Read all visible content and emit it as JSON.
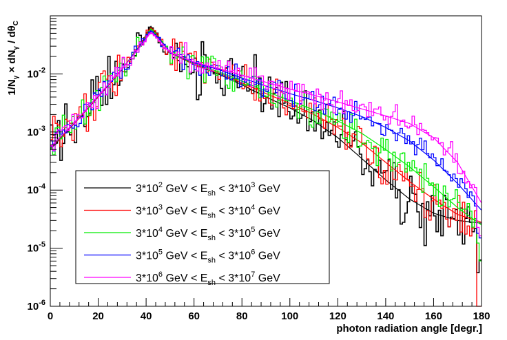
{
  "chart_data": {
    "type": "line",
    "title": "",
    "xlabel": "photon radiation angle [degr.]",
    "ylabel": "1/Nγ × dNγ / dθC",
    "xlim": [
      0,
      180
    ],
    "ylim": [
      1e-06,
      0.1
    ],
    "yscale": "log",
    "x_ticks": [
      0,
      20,
      40,
      60,
      80,
      100,
      120,
      140,
      160,
      180
    ],
    "y_tick_labels": [
      {
        "value": 0.01,
        "base": "10",
        "exp": "-2"
      },
      {
        "value": 0.001,
        "base": "10",
        "exp": "-3"
      },
      {
        "value": 0.0001,
        "base": "10",
        "exp": "-4"
      },
      {
        "value": 1e-05,
        "base": "10",
        "exp": "-5"
      },
      {
        "value": 1e-06,
        "base": "10",
        "exp": "-6"
      }
    ],
    "legend_position": "bottom-left",
    "series": [
      {
        "name": "3*10^2 GeV < E_sh < 3*10^3 GeV",
        "label": {
          "a": "3*10",
          "a_exp": "2",
          "b": " GeV < E",
          "b_sub": "sh",
          "c": " < 3*10",
          "c_exp": "3",
          "d": " GeV"
        },
        "color": "#000000",
        "fit": [
          [
            0,
            0.0005
          ],
          [
            10,
            0.0014
          ],
          [
            20,
            0.004
          ],
          [
            30,
            0.012
          ],
          [
            38,
            0.034
          ],
          [
            42,
            0.066
          ],
          [
            45,
            0.045
          ],
          [
            50,
            0.023
          ],
          [
            60,
            0.0145
          ],
          [
            70,
            0.01
          ],
          [
            80,
            0.0065
          ],
          [
            90,
            0.004
          ],
          [
            100,
            0.0026
          ],
          [
            110,
            0.00155
          ],
          [
            120,
            0.0008
          ],
          [
            130,
            0.00035
          ],
          [
            140,
            0.00015
          ],
          [
            150,
            7e-05
          ],
          [
            160,
            4e-05
          ],
          [
            170,
            3e-05
          ],
          [
            180,
            2.7e-05
          ]
        ],
        "noise": 0.55
      },
      {
        "name": "3*10^3 GeV < E_sh < 3*10^4 GeV",
        "label": {
          "a": "3*10",
          "a_exp": "3",
          "b": " GeV < E",
          "b_sub": "sh",
          "c": " < 3*10",
          "c_exp": "4",
          "d": " GeV"
        },
        "color": "#ff0000",
        "fit": [
          [
            0,
            0.00052
          ],
          [
            10,
            0.0014
          ],
          [
            20,
            0.0041
          ],
          [
            30,
            0.012
          ],
          [
            38,
            0.034
          ],
          [
            42,
            0.063
          ],
          [
            45,
            0.044
          ],
          [
            50,
            0.023
          ],
          [
            60,
            0.0145
          ],
          [
            70,
            0.0105
          ],
          [
            80,
            0.007
          ],
          [
            90,
            0.0046
          ],
          [
            100,
            0.0031
          ],
          [
            110,
            0.002
          ],
          [
            120,
            0.0012
          ],
          [
            130,
            0.00065
          ],
          [
            140,
            0.0003
          ],
          [
            150,
            0.00014
          ],
          [
            160,
            7e-05
          ],
          [
            170,
            3.8e-05
          ],
          [
            180,
            2.8e-05
          ]
        ],
        "noise": 0.4
      },
      {
        "name": "3*10^4 GeV < E_sh < 3*10^5 GeV",
        "label": {
          "a": "3*10",
          "a_exp": "4",
          "b": " GeV < E",
          "b_sub": "sh",
          "c": " < 3*10",
          "c_exp": "5",
          "d": " GeV"
        },
        "color": "#00ee00",
        "fit": [
          [
            0,
            0.00053
          ],
          [
            10,
            0.00145
          ],
          [
            20,
            0.0042
          ],
          [
            30,
            0.0122
          ],
          [
            38,
            0.033
          ],
          [
            42,
            0.06
          ],
          [
            45,
            0.043
          ],
          [
            50,
            0.0235
          ],
          [
            60,
            0.015
          ],
          [
            70,
            0.011
          ],
          [
            80,
            0.0075
          ],
          [
            90,
            0.005
          ],
          [
            100,
            0.0035
          ],
          [
            110,
            0.0024
          ],
          [
            120,
            0.00155
          ],
          [
            130,
            0.00095
          ],
          [
            140,
            0.0005
          ],
          [
            150,
            0.00025
          ],
          [
            160,
            0.000115
          ],
          [
            170,
            5e-05
          ],
          [
            180,
            2.5e-05
          ]
        ],
        "noise": 0.32
      },
      {
        "name": "3*10^5 GeV < E_sh < 3*10^6 GeV",
        "label": {
          "a": "3*10",
          "a_exp": "5",
          "b": " GeV < E",
          "b_sub": "sh",
          "c": " < 3*10",
          "c_exp": "6",
          "d": " GeV"
        },
        "color": "#0000ff",
        "fit": [
          [
            0,
            0.00054
          ],
          [
            10,
            0.00145
          ],
          [
            20,
            0.0042
          ],
          [
            30,
            0.0122
          ],
          [
            38,
            0.032
          ],
          [
            42,
            0.056
          ],
          [
            45,
            0.042
          ],
          [
            50,
            0.0235
          ],
          [
            60,
            0.0155
          ],
          [
            70,
            0.012
          ],
          [
            80,
            0.0085
          ],
          [
            90,
            0.0062
          ],
          [
            100,
            0.0046
          ],
          [
            110,
            0.0035
          ],
          [
            120,
            0.0026
          ],
          [
            130,
            0.00185
          ],
          [
            140,
            0.0012
          ],
          [
            150,
            0.0007
          ],
          [
            160,
            0.00033
          ],
          [
            170,
            0.00013
          ],
          [
            180,
            4.5e-05
          ]
        ],
        "noise": 0.22
      },
      {
        "name": "3*10^6 GeV < E_sh < 3*10^7 GeV",
        "label": {
          "a": "3*10",
          "a_exp": "6",
          "b": " GeV < E",
          "b_sub": "sh",
          "c": " < 3*10",
          "c_exp": "7",
          "d": " GeV"
        },
        "color": "#ff00ff",
        "fit": [
          [
            0,
            0.00055
          ],
          [
            10,
            0.00145
          ],
          [
            20,
            0.0042
          ],
          [
            30,
            0.0122
          ],
          [
            38,
            0.031
          ],
          [
            42,
            0.052
          ],
          [
            45,
            0.04
          ],
          [
            50,
            0.0235
          ],
          [
            60,
            0.016
          ],
          [
            70,
            0.0125
          ],
          [
            80,
            0.0095
          ],
          [
            90,
            0.0072
          ],
          [
            100,
            0.0055
          ],
          [
            110,
            0.0043
          ],
          [
            120,
            0.0033
          ],
          [
            130,
            0.0025
          ],
          [
            140,
            0.0019
          ],
          [
            150,
            0.0014
          ],
          [
            160,
            0.0008
          ],
          [
            170,
            0.0003
          ],
          [
            180,
            6e-05
          ]
        ],
        "noise": 0.22
      }
    ]
  }
}
